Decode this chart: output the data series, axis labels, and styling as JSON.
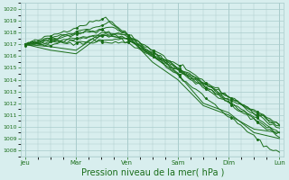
{
  "bg_color": "#d8eeee",
  "grid_color": "#aacccc",
  "line_color": "#1a6e1a",
  "xlabel": "Pression niveau de la mer( hPa )",
  "xlabel_fontsize": 7,
  "yticks": [
    1008,
    1009,
    1010,
    1011,
    1012,
    1013,
    1014,
    1015,
    1016,
    1017,
    1018,
    1019,
    1020
  ],
  "ylim": [
    1007.5,
    1020.5
  ],
  "xtick_labels": [
    "Jeu",
    "Mar",
    "Ven",
    "Sam",
    "Dim",
    "Lun"
  ],
  "total_hours": 120,
  "day_positions_hours": [
    0,
    24,
    48,
    72,
    96,
    120
  ]
}
